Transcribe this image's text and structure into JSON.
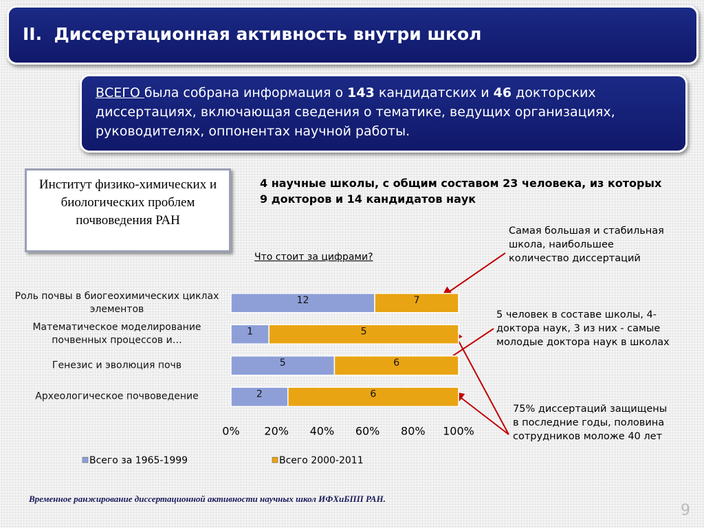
{
  "slide": {
    "title": "II.  Диссертационная активность внутри школ",
    "summary": {
      "lead": "ВСЕГО ",
      "part1": "была собрана информация о ",
      "num1": "143",
      "part2": " кандидатских и ",
      "num2": "46",
      "part3": " докторских диссертациях, включающая сведения о тематике, ведущих организациях, руководителях, оппонентах научной работы."
    },
    "institute": "Институт физико-химических и биологических проблем почвоведения РАН",
    "heading": "4 научные школы, с общим составом 23 человека, из которых 9 докторов и 14 кандидатов наук",
    "link": "Что стоит за цифрами?",
    "annotations": [
      "Самая большая и стабильная школа, наибольшее количество диссертаций",
      "5 человек в составе школы, 4-доктора наук, 3 из них - самые молодые доктора наук в школах",
      "75% диссертаций защищены в последние годы, половина сотрудников моложе 40 лет"
    ],
    "caption": "Временное ранжирование диссертационной активности научных школ ИФХиБПП РАН.",
    "page_number": "9"
  },
  "chart_data": {
    "type": "bar",
    "orientation": "horizontal",
    "stacking": "percent",
    "categories": [
      "Роль почвы в биогеохимических циклах элементов",
      "Математическое моделирование почвенных процессов и…",
      "Генезис и эволюция почв",
      "Археологическое почвоведение"
    ],
    "series": [
      {
        "name": "Всего за 1965-1999",
        "color": "#8e9fd8",
        "values": [
          12,
          1,
          5,
          2
        ]
      },
      {
        "name": "Всего 2000-2011",
        "color": "#e9a413",
        "values": [
          7,
          5,
          6,
          6
        ]
      }
    ],
    "xlim": [
      0,
      100
    ],
    "xticks": [
      {
        "value": 0,
        "label": "0%"
      },
      {
        "value": 20,
        "label": "20%"
      },
      {
        "value": 40,
        "label": "40%"
      },
      {
        "value": 60,
        "label": "60%"
      },
      {
        "value": 80,
        "label": "80%"
      },
      {
        "value": 100,
        "label": "100%"
      }
    ],
    "legend": "bottom"
  }
}
